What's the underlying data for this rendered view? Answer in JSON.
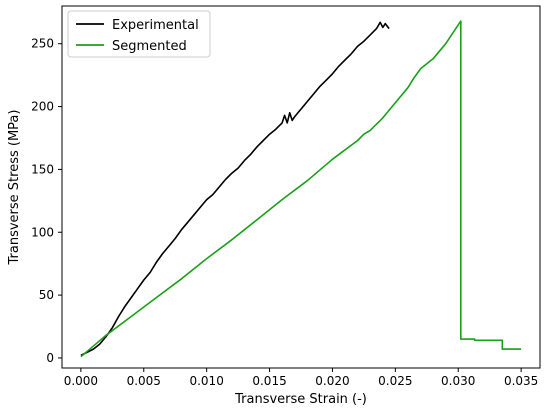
{
  "chart_data": {
    "type": "line",
    "title": "",
    "xlabel": "Transverse Strain (-)",
    "ylabel": "Transverse Stress (MPa)",
    "xlim": [
      -0.0015,
      0.0365
    ],
    "ylim": [
      -8,
      280
    ],
    "xticks": [
      0.0,
      0.005,
      0.01,
      0.015,
      0.02,
      0.025,
      0.03,
      0.035
    ],
    "xtick_labels": [
      "0.000",
      "0.005",
      "0.010",
      "0.015",
      "0.020",
      "0.025",
      "0.030",
      "0.035"
    ],
    "yticks": [
      0,
      50,
      100,
      150,
      200,
      250
    ],
    "ytick_labels": [
      "0",
      "50",
      "100",
      "150",
      "200",
      "250"
    ],
    "grid": false,
    "legend_position": "top-left",
    "series": [
      {
        "name": "Experimental",
        "color": "#000000",
        "x": [
          0.0,
          0.001,
          0.0015,
          0.002,
          0.0025,
          0.003,
          0.0035,
          0.004,
          0.0045,
          0.005,
          0.0055,
          0.006,
          0.0065,
          0.007,
          0.0075,
          0.008,
          0.0085,
          0.009,
          0.0095,
          0.01,
          0.0105,
          0.011,
          0.0115,
          0.012,
          0.0125,
          0.013,
          0.0135,
          0.014,
          0.0145,
          0.015,
          0.0155,
          0.016,
          0.0162,
          0.0164,
          0.0166,
          0.0168,
          0.017,
          0.0175,
          0.018,
          0.0185,
          0.019,
          0.0195,
          0.02,
          0.0205,
          0.021,
          0.0215,
          0.022,
          0.0225,
          0.023,
          0.0235,
          0.0238,
          0.024,
          0.0242,
          0.0245
        ],
        "y": [
          2,
          7,
          11,
          17,
          24,
          33,
          41,
          48,
          55,
          62,
          68,
          76,
          83,
          89,
          95,
          102,
          108,
          114,
          120,
          126,
          130,
          136,
          142,
          147,
          151,
          157,
          162,
          168,
          173,
          178,
          182,
          187,
          193,
          187,
          195,
          189,
          192,
          198,
          204,
          210,
          216,
          221,
          226,
          232,
          237,
          242,
          248,
          252,
          257,
          262,
          267,
          263,
          266,
          262
        ]
      },
      {
        "name": "Segmented",
        "color": "#1a9f1a",
        "x": [
          0.0,
          0.002,
          0.004,
          0.006,
          0.008,
          0.01,
          0.012,
          0.014,
          0.016,
          0.018,
          0.02,
          0.022,
          0.0225,
          0.023,
          0.024,
          0.025,
          0.026,
          0.0265,
          0.027,
          0.028,
          0.029,
          0.0302,
          0.0302,
          0.0313,
          0.0313,
          0.0315,
          0.0335,
          0.0335,
          0.035
        ],
        "y": [
          1,
          18,
          33,
          48,
          63,
          79,
          94,
          110,
          126,
          141,
          158,
          173,
          178,
          181,
          191,
          203,
          215,
          223,
          230,
          238,
          250,
          268,
          15,
          15,
          14,
          14,
          14,
          7,
          7
        ]
      }
    ]
  }
}
